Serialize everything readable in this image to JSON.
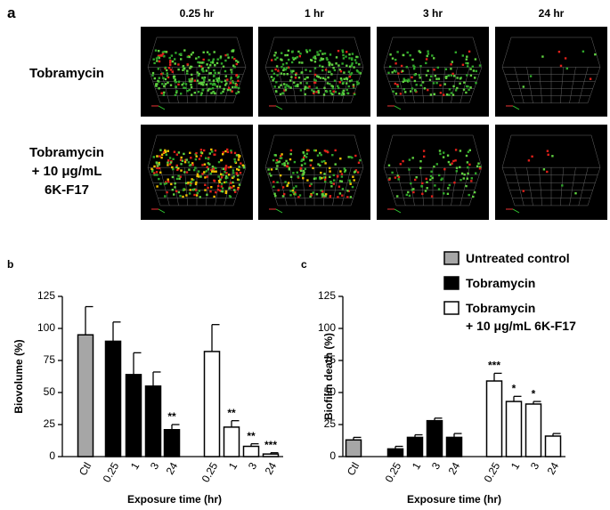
{
  "panel_a": {
    "label": "a",
    "columns": [
      "0.25 hr",
      "1 hr",
      "3 hr",
      "24 hr"
    ],
    "rows": [
      "Tobramycin",
      "Tobramycin\n+ 10 μg/mL\n6K-F17"
    ]
  },
  "chart_data": [
    {
      "type": "bar",
      "panel": "b",
      "y_label": "Biovolume (%)",
      "x_label": "Exposure time (hr)",
      "categories": [
        "Ctl",
        "0.25",
        "1",
        "3",
        "24",
        "0.25",
        "1",
        "3",
        "24"
      ],
      "series": [
        {
          "name": "Untreated control",
          "color": "#a6a6a6",
          "values": [
            95,
            null,
            null,
            null,
            null,
            null,
            null,
            null,
            null
          ],
          "errors": [
            22,
            null,
            null,
            null,
            null,
            null,
            null,
            null,
            null
          ]
        },
        {
          "name": "Tobramycin",
          "color": "#000000",
          "values": [
            null,
            90,
            64,
            55,
            21,
            null,
            null,
            null,
            null
          ],
          "errors": [
            null,
            15,
            17,
            11,
            4,
            null,
            null,
            null,
            null
          ],
          "value_labels": [
            null,
            null,
            null,
            null,
            "**",
            null,
            null,
            null,
            null
          ]
        },
        {
          "name": "Tobramycin\n+ 10 μg/mL 6K-F17",
          "color": "#ffffff",
          "values": [
            null,
            null,
            null,
            null,
            null,
            82,
            23,
            8,
            2
          ],
          "errors": [
            null,
            null,
            null,
            null,
            null,
            21,
            5,
            2,
            1
          ],
          "value_labels": [
            null,
            null,
            null,
            null,
            null,
            null,
            "**",
            "**",
            "***"
          ]
        }
      ],
      "ylim": [
        0,
        125
      ],
      "yticks": [
        0,
        25,
        50,
        75,
        100,
        125
      ]
    },
    {
      "type": "bar",
      "panel": "c",
      "y_label": "Biofilm death (%)",
      "x_label": "Exposure time (hr)",
      "categories": [
        "Ctl",
        "0.25",
        "1",
        "3",
        "24",
        "0.25",
        "1",
        "3",
        "24"
      ],
      "series": [
        {
          "name": "Untreated control",
          "color": "#a6a6a6",
          "values": [
            13,
            null,
            null,
            null,
            null,
            null,
            null,
            null,
            null
          ],
          "errors": [
            2,
            null,
            null,
            null,
            null,
            null,
            null,
            null,
            null
          ]
        },
        {
          "name": "Tobramycin",
          "color": "#000000",
          "values": [
            null,
            6,
            15,
            28,
            15,
            null,
            null,
            null,
            null
          ],
          "errors": [
            null,
            2,
            2,
            2,
            3,
            null,
            null,
            null,
            null
          ]
        },
        {
          "name": "Tobramycin\n+ 10 μg/mL 6K-F17",
          "color": "#ffffff",
          "values": [
            null,
            null,
            null,
            null,
            null,
            59,
            43,
            41,
            16
          ],
          "errors": [
            null,
            null,
            null,
            null,
            null,
            6,
            4,
            2,
            2
          ],
          "value_labels": [
            null,
            null,
            null,
            null,
            null,
            "***",
            "*",
            "*",
            null
          ]
        }
      ],
      "ylim": [
        0,
        125
      ],
      "yticks": [
        0,
        25,
        50,
        75,
        100,
        125
      ],
      "legend": true
    }
  ]
}
